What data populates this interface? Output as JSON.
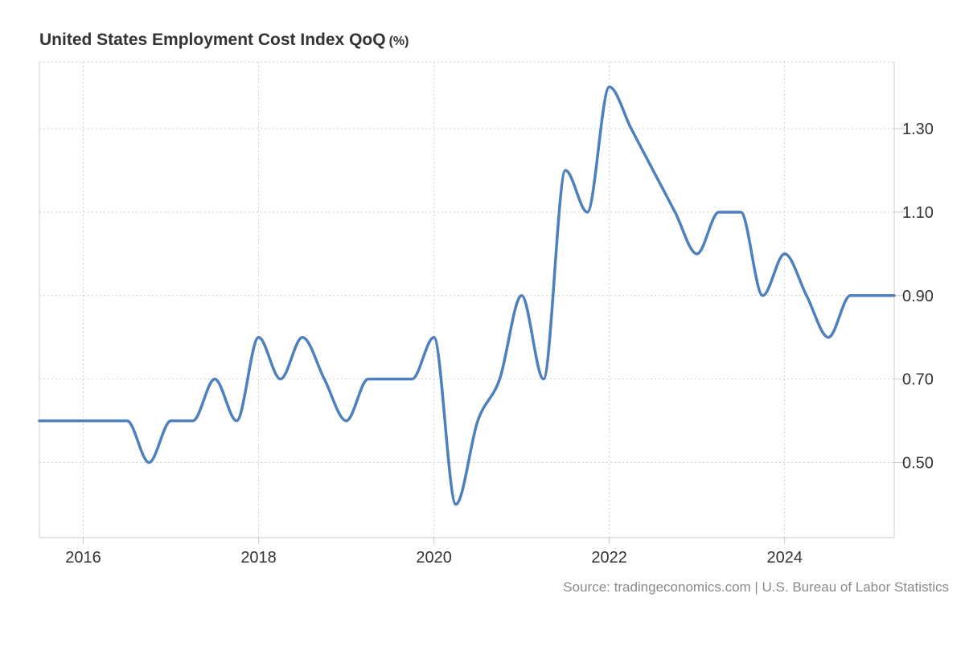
{
  "chart_data": {
    "type": "line",
    "title": "United States Employment Cost Index QoQ",
    "unit_label": "(%)",
    "xlabel": "",
    "ylabel": "",
    "x_ticks": [
      "2016",
      "2018",
      "2020",
      "2022",
      "2024"
    ],
    "x_tick_values": [
      2016,
      2018,
      2020,
      2022,
      2024
    ],
    "xlim": [
      2015.5,
      2025.25
    ],
    "y_ticks": [
      "0.50",
      "0.70",
      "0.90",
      "1.10",
      "1.30"
    ],
    "y_tick_values": [
      0.5,
      0.7,
      0.9,
      1.1,
      1.3
    ],
    "ylim": [
      0.32,
      1.46
    ],
    "grid": true,
    "color": "#4d80bd",
    "series": [
      {
        "name": "Employment Cost Index QoQ",
        "x": [
          2015.5,
          2015.75,
          2016.0,
          2016.25,
          2016.5,
          2016.75,
          2017.0,
          2017.25,
          2017.5,
          2017.75,
          2018.0,
          2018.25,
          2018.5,
          2018.75,
          2019.0,
          2019.25,
          2019.5,
          2019.75,
          2020.0,
          2020.25,
          2020.5,
          2020.75,
          2021.0,
          2021.25,
          2021.5,
          2021.75,
          2022.0,
          2022.25,
          2022.5,
          2022.75,
          2023.0,
          2023.25,
          2023.5,
          2023.75,
          2024.0,
          2024.25,
          2024.5,
          2024.75,
          2025.0,
          2025.25
        ],
        "values": [
          0.6,
          0.6,
          0.6,
          0.6,
          0.6,
          0.5,
          0.6,
          0.6,
          0.7,
          0.6,
          0.8,
          0.7,
          0.8,
          0.7,
          0.6,
          0.7,
          0.7,
          0.7,
          0.8,
          0.4,
          0.6,
          0.7,
          0.9,
          0.7,
          1.2,
          1.1,
          1.4,
          1.3,
          1.2,
          1.1,
          1.0,
          1.1,
          1.1,
          0.9,
          1.0,
          0.9,
          0.8,
          0.9,
          0.9,
          0.9
        ]
      }
    ]
  },
  "source": "Source: tradingeconomics.com | U.S. Bureau of Labor Statistics"
}
